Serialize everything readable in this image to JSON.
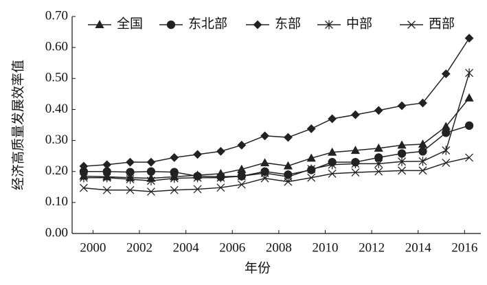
{
  "chart_data": {
    "type": "line",
    "y_label": "经济高质量发展效率值",
    "x_label": "年份",
    "x": [
      1999.6,
      2000.6,
      2001.6,
      2002.5,
      2003.5,
      2004.5,
      2005.5,
      2006.4,
      2007.4,
      2008.4,
      2009.4,
      2010.3,
      2011.3,
      2012.3,
      2013.3,
      2014.2,
      2015.2,
      2016.2
    ],
    "xlim": [
      1999.1,
      2016.7
    ],
    "xticks": [
      2000,
      2002,
      2004,
      2006,
      2008,
      2010,
      2012,
      2014,
      2016
    ],
    "ylim": [
      0,
      0.7
    ],
    "yticks": [
      {
        "value": 0,
        "label": "0.00"
      },
      {
        "value": 0.1,
        "label": "0.10"
      },
      {
        "value": 0.2,
        "label": "0.20"
      },
      {
        "value": 0.3,
        "label": "0.30"
      },
      {
        "value": 0.4,
        "label": "0.40"
      },
      {
        "value": 0.5,
        "label": "0.50"
      },
      {
        "value": 0.6,
        "label": "0.60"
      },
      {
        "value": 0.7,
        "label": "0.70"
      }
    ],
    "legend": "top",
    "series": [
      {
        "name": "全国",
        "color": "#222222",
        "marker": "triangle",
        "values": [
          0.185,
          0.183,
          0.18,
          0.178,
          0.183,
          0.188,
          0.193,
          0.207,
          0.228,
          0.218,
          0.243,
          0.262,
          0.268,
          0.275,
          0.285,
          0.288,
          0.345,
          0.437
        ]
      },
      {
        "name": "东北部",
        "color": "#222222",
        "marker": "circle",
        "values": [
          0.2,
          0.2,
          0.198,
          0.2,
          0.198,
          0.185,
          0.183,
          0.185,
          0.2,
          0.19,
          0.205,
          0.23,
          0.23,
          0.245,
          0.258,
          0.265,
          0.325,
          0.348
        ]
      },
      {
        "name": "东部",
        "color": "#222222",
        "marker": "diamond",
        "values": [
          0.217,
          0.222,
          0.23,
          0.23,
          0.245,
          0.255,
          0.265,
          0.285,
          0.315,
          0.31,
          0.338,
          0.37,
          0.383,
          0.397,
          0.412,
          0.421,
          0.515,
          0.63
        ]
      },
      {
        "name": "中部",
        "color": "#222222",
        "marker": "star",
        "values": [
          0.18,
          0.18,
          0.175,
          0.17,
          0.178,
          0.18,
          0.18,
          0.185,
          0.195,
          0.183,
          0.208,
          0.222,
          0.225,
          0.225,
          0.232,
          0.233,
          0.268,
          0.518
        ]
      },
      {
        "name": "西部",
        "color": "#222222",
        "marker": "x",
        "values": [
          0.147,
          0.14,
          0.14,
          0.135,
          0.14,
          0.143,
          0.148,
          0.158,
          0.178,
          0.167,
          0.18,
          0.193,
          0.197,
          0.2,
          0.203,
          0.203,
          0.228,
          0.245
        ]
      }
    ]
  }
}
